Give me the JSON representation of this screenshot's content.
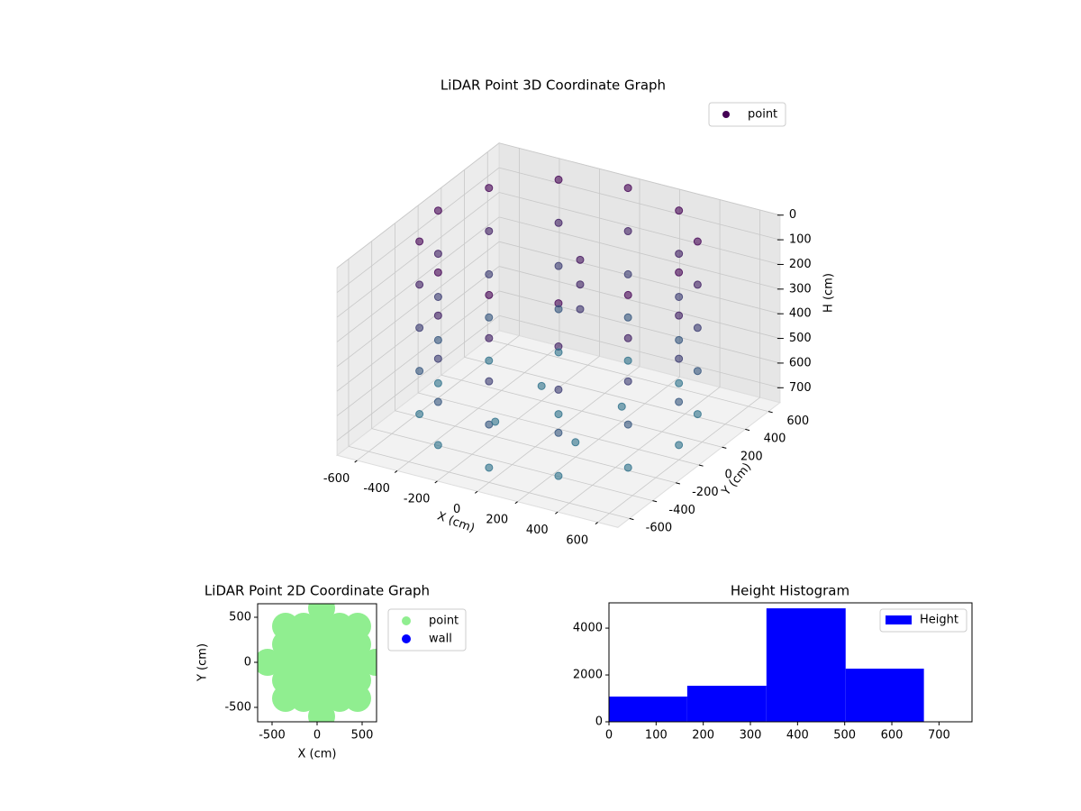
{
  "chart_data": [
    {
      "type": "scatter3d",
      "title": "LiDAR Point 3D Coordinate Graph",
      "x_label": "X (cm)",
      "y_label": "Y (cm)",
      "z_label": "H (cm)",
      "xlim": [
        -700,
        700
      ],
      "ylim": [
        -700,
        700
      ],
      "zlim": [
        760,
        0
      ],
      "xticks": [
        -600,
        -400,
        -200,
        0,
        200,
        400,
        600
      ],
      "yticks": [
        -600,
        -400,
        -200,
        0,
        200,
        400,
        600
      ],
      "zticks": [
        0,
        100,
        200,
        300,
        400,
        500,
        600,
        700
      ],
      "color_range": [
        "#440154",
        "#2a788e"
      ],
      "grid": true,
      "legend": "upper right",
      "series": [
        {
          "name": "point",
          "x": [
            600,
            520,
            300,
            0,
            -300,
            -520,
            -600,
            -520,
            -300,
            0,
            300,
            520,
            600,
            520,
            300,
            0,
            -300,
            -520,
            -600,
            -520,
            -300,
            0,
            300,
            520,
            600,
            520,
            300,
            0,
            -300,
            -520,
            -600,
            -520,
            -300,
            0,
            300,
            520,
            600,
            520,
            300,
            0,
            -300,
            -520,
            -600,
            -520,
            -300,
            0,
            300,
            520,
            600,
            520,
            300,
            0,
            -300,
            -520,
            -600,
            -520,
            -300,
            0,
            300,
            520,
            50,
            50,
            50,
            0,
            200,
            -200,
            -200,
            200
          ],
          "y": [
            0,
            300,
            520,
            600,
            520,
            300,
            0,
            -300,
            -520,
            -600,
            -520,
            -300,
            0,
            300,
            520,
            600,
            520,
            300,
            0,
            -300,
            -520,
            -600,
            -520,
            -300,
            0,
            300,
            520,
            600,
            520,
            300,
            0,
            -300,
            -520,
            -600,
            -520,
            -300,
            0,
            300,
            520,
            600,
            520,
            300,
            0,
            -300,
            -520,
            -600,
            -520,
            -300,
            0,
            300,
            520,
            600,
            520,
            300,
            0,
            -300,
            -520,
            -600,
            -520,
            -300,
            100,
            100,
            100,
            0,
            200,
            -200,
            200,
            -200
          ],
          "z": [
            0,
            0,
            0,
            0,
            0,
            0,
            0,
            0,
            0,
            0,
            0,
            0,
            175,
            175,
            175,
            175,
            175,
            175,
            175,
            175,
            175,
            175,
            175,
            175,
            350,
            350,
            350,
            350,
            350,
            350,
            350,
            350,
            350,
            350,
            350,
            350,
            525,
            525,
            525,
            525,
            525,
            525,
            525,
            525,
            525,
            525,
            525,
            525,
            700,
            700,
            700,
            700,
            700,
            700,
            700,
            700,
            700,
            700,
            700,
            700,
            100,
            200,
            300,
            700,
            700,
            700,
            700,
            700
          ]
        }
      ]
    },
    {
      "type": "scatter",
      "title": "LiDAR Point 2D Coordinate Graph",
      "x_label": "X (cm)",
      "y_label": "Y (cm)",
      "xlim": [
        -660,
        660
      ],
      "ylim": [
        -660,
        650
      ],
      "xticks": [
        -500,
        0,
        500
      ],
      "yticks": [
        -500,
        0,
        500
      ],
      "legend": "outside upper right",
      "series": [
        {
          "name": "point",
          "color": "#90ee90",
          "x": [
            -550,
            -350,
            -150,
            50,
            250,
            450,
            650,
            -350,
            -150,
            50,
            250,
            450,
            -350,
            -150,
            50,
            250,
            450,
            -350,
            -150,
            50,
            250,
            450,
            -350,
            -150,
            50,
            250,
            450,
            50,
            50
          ],
          "values": [
            0,
            0,
            0,
            0,
            0,
            0,
            0,
            200,
            200,
            200,
            200,
            200,
            -200,
            -200,
            -200,
            -200,
            -200,
            400,
            400,
            400,
            400,
            400,
            -400,
            -400,
            -400,
            -400,
            -400,
            600,
            -600
          ]
        },
        {
          "name": "wall",
          "color": "#0000ff",
          "x": [],
          "values": []
        }
      ]
    },
    {
      "type": "histogram",
      "title": "Height Histogram",
      "xlim": [
        0,
        770
      ],
      "ylim": [
        0,
        5080
      ],
      "xticks": [
        0,
        100,
        200,
        300,
        400,
        500,
        600,
        700
      ],
      "yticks": [
        0,
        2000,
        4000
      ],
      "legend": "upper right",
      "bins": [
        0,
        166,
        334,
        502,
        668
      ],
      "series": [
        {
          "name": "Height",
          "color": "#0000ff",
          "values": [
            1077,
            1538,
            4846,
            2269
          ]
        }
      ]
    }
  ]
}
